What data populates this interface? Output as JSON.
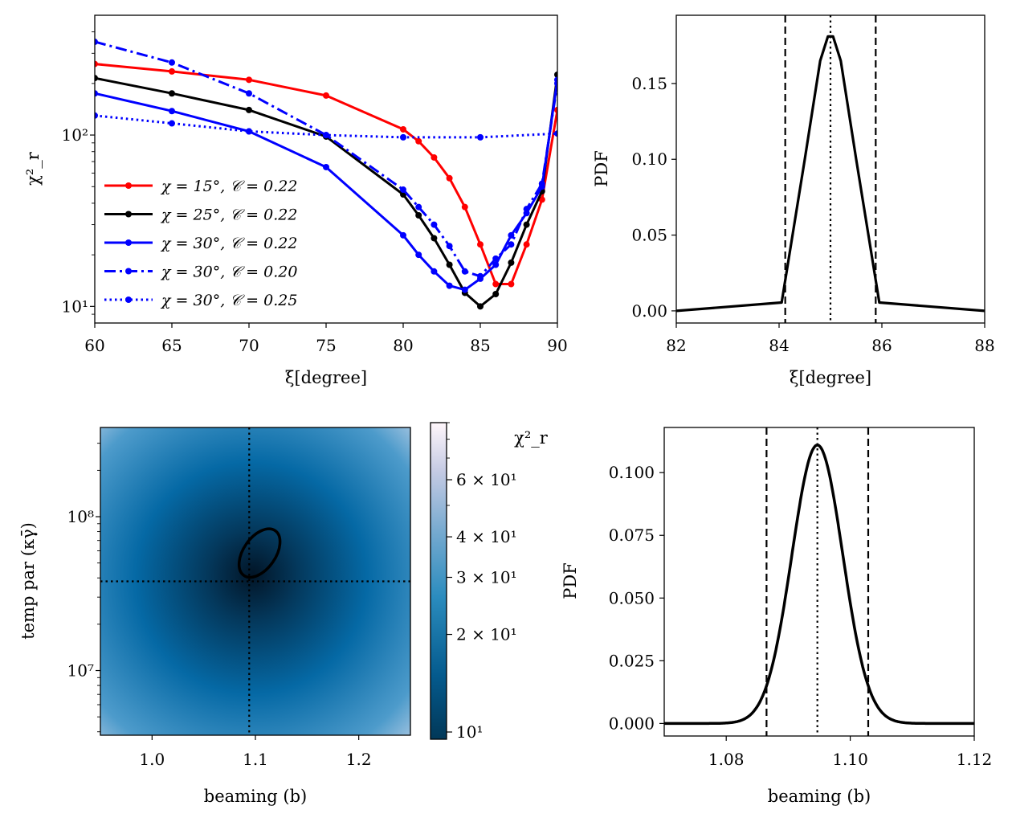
{
  "chart_data": [
    {
      "id": "p1",
      "type": "line",
      "xlabel": "ξ[degree]",
      "ylabel": "χ²_r",
      "yscale": "log",
      "xlim": [
        60,
        90
      ],
      "ylim": [
        8,
        500
      ],
      "xticks": [
        60,
        65,
        70,
        75,
        80,
        85,
        90
      ],
      "ytick_labels": [
        "10¹",
        "10²"
      ],
      "series": [
        {
          "name": "χ = 15°, 𝒞 = 0.22",
          "color": "#ff0000",
          "style": "solid",
          "x": [
            60,
            65,
            70,
            75,
            80,
            81,
            82,
            83,
            84,
            85,
            86,
            87,
            88,
            89,
            90
          ],
          "y": [
            260,
            235,
            210,
            170,
            108,
            92,
            74,
            56,
            38,
            23,
            13.5,
            13.5,
            23,
            42,
            140
          ]
        },
        {
          "name": "χ = 25°, 𝒞 = 0.22",
          "color": "#000000",
          "style": "solid",
          "x": [
            60,
            65,
            70,
            75,
            80,
            81,
            82,
            83,
            84,
            85,
            86,
            87,
            88,
            89,
            90
          ],
          "y": [
            215,
            175,
            140,
            98,
            45,
            34,
            25,
            17.5,
            12,
            10,
            11.8,
            18,
            30,
            47,
            225
          ]
        },
        {
          "name": "χ = 30°, 𝒞 = 0.22",
          "color": "#0000ff",
          "style": "solid",
          "x": [
            60,
            65,
            70,
            75,
            80,
            81,
            82,
            83,
            84,
            85,
            86,
            87,
            88,
            89,
            90
          ],
          "y": [
            175,
            138,
            105,
            65,
            26,
            20,
            16,
            13.2,
            12.5,
            14.5,
            17.5,
            26,
            35,
            50,
            210
          ]
        },
        {
          "name": "χ = 30°, 𝒞 = 0.20",
          "color": "#0000ff",
          "style": "dashdot",
          "x": [
            60,
            65,
            70,
            75,
            80,
            81,
            82,
            83,
            84,
            85,
            86,
            87,
            88,
            89,
            90
          ],
          "y": [
            350,
            265,
            175,
            100,
            48,
            38,
            30,
            22.5,
            16,
            15,
            19,
            23,
            37,
            52,
            200
          ]
        },
        {
          "name": "χ = 30°, 𝒞 = 0.25",
          "color": "#0000ff",
          "style": "dotted",
          "x": [
            60,
            65,
            70,
            75,
            80,
            85,
            90
          ],
          "y": [
            130,
            117,
            105,
            100,
            97,
            97,
            102
          ]
        }
      ]
    },
    {
      "id": "p2",
      "type": "line",
      "xlabel": "ξ[degree]",
      "ylabel": "PDF",
      "xlim": [
        82,
        88
      ],
      "ylim": [
        -0.008,
        0.195
      ],
      "xticks": [
        82,
        84,
        86,
        88
      ],
      "yticks": [
        0.0,
        0.05,
        0.1,
        0.15
      ],
      "ytick_labels": [
        "0.00",
        "0.05",
        "0.10",
        "0.15"
      ],
      "series": [
        {
          "name": "PDF",
          "color": "#000000",
          "x": [
            82,
            84.05,
            84.5,
            84.8,
            84.95,
            85.05,
            85.2,
            85.5,
            85.95,
            88
          ],
          "y": [
            0.0,
            0.0055,
            0.1,
            0.165,
            0.181,
            0.181,
            0.165,
            0.1,
            0.0055,
            0.0
          ]
        }
      ],
      "vlines": [
        {
          "x": 84.12,
          "style": "dashed"
        },
        {
          "x": 85.0,
          "style": "dotted"
        },
        {
          "x": 85.88,
          "style": "dashed"
        }
      ]
    },
    {
      "id": "p3",
      "type": "heatmap",
      "xlabel": "beaming (b)",
      "ylabel": "temp par (κγ̄)",
      "yscale": "log",
      "xlim": [
        0.95,
        1.25
      ],
      "ylim": [
        3800000.0,
        380000000.0
      ],
      "xticks": [
        1.0,
        1.1,
        1.2
      ],
      "ytick_labels": [
        "10⁷",
        "10⁸"
      ],
      "best_fit": {
        "b": 1.094,
        "k": 38000000.0
      },
      "contour_center": {
        "b": 1.104,
        "k": 58000000.0
      },
      "colorbar": {
        "label": "χ²_r",
        "range": [
          9.5,
          90
        ],
        "tick_labels": [
          "10¹",
          "2 × 10¹",
          "3 × 10¹",
          "4 × 10¹",
          "6 × 10¹"
        ],
        "tick_values": [
          10,
          20,
          30,
          40,
          60
        ]
      }
    },
    {
      "id": "p4",
      "type": "line",
      "xlabel": "beaming (b)",
      "ylabel": "PDF",
      "xlim": [
        1.07,
        1.12
      ],
      "ylim": [
        -0.005,
        0.118
      ],
      "xticks": [
        1.08,
        1.1,
        1.12
      ],
      "xtick_labels": [
        "1.08",
        "1.10",
        "1.12"
      ],
      "yticks": [
        0.0,
        0.025,
        0.05,
        0.075,
        0.1
      ],
      "ytick_labels": [
        "0.000",
        "0.025",
        "0.050",
        "0.075",
        "0.100"
      ],
      "gaussian": {
        "mean": 1.0947,
        "sigma": 0.0041,
        "peak": 0.111
      },
      "vlines": [
        {
          "x": 1.0865,
          "style": "dashed"
        },
        {
          "x": 1.0947,
          "style": "dotted"
        },
        {
          "x": 1.1029,
          "style": "dashed"
        }
      ]
    }
  ]
}
